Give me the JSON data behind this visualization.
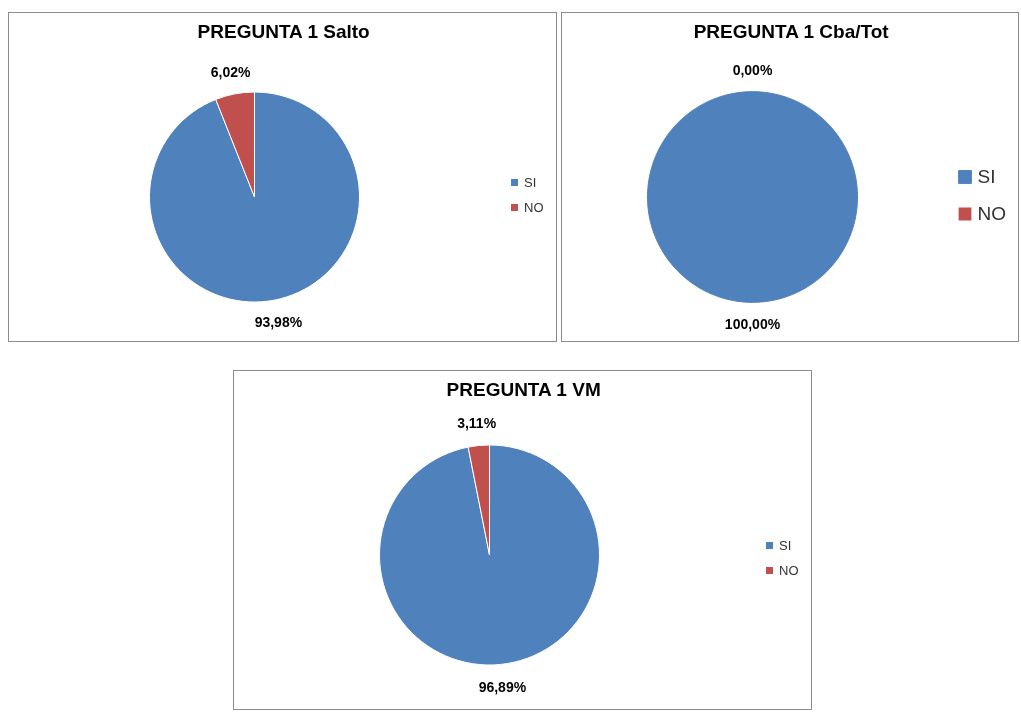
{
  "chart_data": [
    {
      "type": "pie",
      "title": "PREGUNTA 1 Salto",
      "categories": [
        "SI",
        "NO"
      ],
      "values": [
        93.98,
        6.02
      ],
      "colors": [
        "#4f81bd",
        "#c0504d"
      ],
      "value_labels": [
        "93,98%",
        "6,02%"
      ],
      "legend": "right"
    },
    {
      "type": "pie",
      "title": "PREGUNTA 1 Cba/Tot",
      "categories": [
        "SI",
        "NO"
      ],
      "values": [
        100,
        0
      ],
      "colors": [
        "#4f81bd",
        "#c0504d"
      ],
      "value_labels": [
        "100,00%",
        "0,00%"
      ],
      "legend": "right"
    },
    {
      "type": "pie",
      "title": "PREGUNTA 1 VM",
      "categories": [
        "SI",
        "NO"
      ],
      "values": [
        96.89,
        3.11
      ],
      "colors": [
        "#4f81bd",
        "#c0504d"
      ],
      "value_labels": [
        "96,89%",
        "3,11%"
      ],
      "legend": "right"
    }
  ]
}
